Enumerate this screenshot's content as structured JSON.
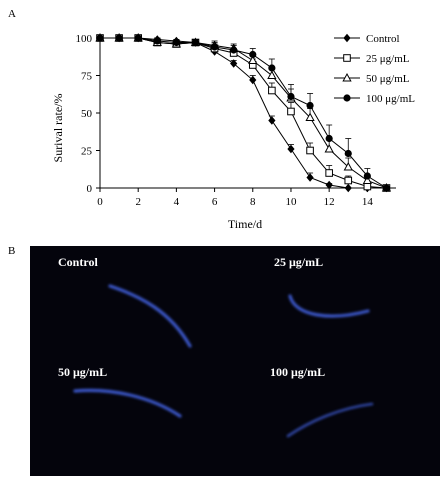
{
  "panel_a_label": "A",
  "panel_b_label": "B",
  "chart_data": {
    "type": "line",
    "xlabel": "Time/d",
    "ylabel": "Surival rate/%",
    "xlim": [
      0,
      15.5
    ],
    "ylim": [
      0,
      100
    ],
    "xticks": [
      0,
      2,
      4,
      6,
      8,
      10,
      12,
      14
    ],
    "yticks": [
      0,
      25,
      50,
      75,
      100
    ],
    "grid": false,
    "legend_position": "top-right",
    "error_bars": true,
    "x": [
      0,
      1,
      2,
      3,
      4,
      5,
      6,
      7,
      8,
      9,
      10,
      11,
      12,
      13,
      14,
      15
    ],
    "series": [
      {
        "name": "Control",
        "marker": "filled-diamond",
        "values": [
          100,
          100,
          100,
          99,
          98,
          97,
          91,
          83,
          72,
          45,
          26,
          7,
          2,
          0,
          0,
          0
        ],
        "errors": [
          0,
          0,
          0,
          1,
          1,
          1,
          2,
          2,
          3,
          3,
          3,
          3,
          1,
          0,
          0,
          0
        ]
      },
      {
        "name": "25 μg/mL",
        "marker": "open-square",
        "values": [
          100,
          100,
          100,
          97,
          96,
          97,
          93,
          90,
          82,
          65,
          51,
          25,
          10,
          5,
          1,
          0
        ],
        "errors": [
          0,
          0,
          0,
          2,
          2,
          2,
          3,
          3,
          4,
          5,
          6,
          5,
          5,
          3,
          1,
          0
        ]
      },
      {
        "name": "50 μg/mL",
        "marker": "open-triangle",
        "values": [
          100,
          100,
          100,
          97,
          96,
          97,
          95,
          93,
          85,
          75,
          60,
          47,
          26,
          14,
          5,
          0
        ],
        "errors": [
          0,
          0,
          0,
          2,
          2,
          2,
          3,
          3,
          4,
          5,
          6,
          6,
          7,
          6,
          3,
          0
        ]
      },
      {
        "name": "100 μg/mL",
        "marker": "filled-circle",
        "values": [
          100,
          100,
          100,
          98,
          97,
          97,
          94,
          92,
          89,
          80,
          61,
          55,
          33,
          23,
          8,
          0
        ],
        "errors": [
          0,
          0,
          0,
          2,
          2,
          2,
          3,
          3,
          4,
          6,
          8,
          8,
          9,
          10,
          5,
          0
        ]
      }
    ]
  },
  "photo_panel": {
    "background": "#04040c",
    "worm_color": "#3a56c8",
    "labels": [
      "Control",
      "25 μg/mL",
      "50 μg/mL",
      "100 μg/mL"
    ]
  }
}
